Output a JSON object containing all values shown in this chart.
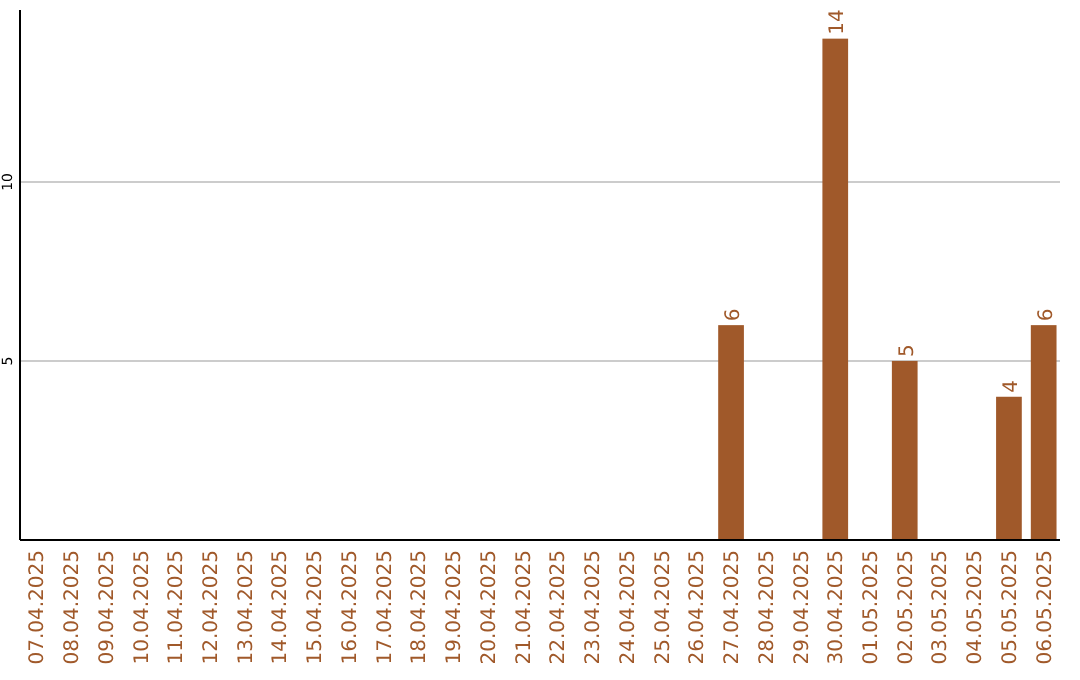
{
  "chart_data": {
    "type": "bar",
    "categories": [
      "07.04.2025",
      "08.04.2025",
      "09.04.2025",
      "10.04.2025",
      "11.04.2025",
      "12.04.2025",
      "13.04.2025",
      "14.04.2025",
      "15.04.2025",
      "16.04.2025",
      "17.04.2025",
      "18.04.2025",
      "19.04.2025",
      "20.04.2025",
      "21.04.2025",
      "22.04.2025",
      "23.04.2025",
      "24.04.2025",
      "25.04.2025",
      "26.04.2025",
      "27.04.2025",
      "28.04.2025",
      "29.04.2025",
      "30.04.2025",
      "01.05.2025",
      "02.05.2025",
      "03.05.2025",
      "04.05.2025",
      "05.05.2025",
      "06.05.2025"
    ],
    "values": [
      0,
      0,
      0,
      0,
      0,
      0,
      0,
      0,
      0,
      0,
      0,
      0,
      0,
      0,
      0,
      0,
      0,
      0,
      0,
      0,
      6,
      0,
      0,
      14,
      0,
      5,
      0,
      0,
      4,
      6
    ],
    "value_labels": [
      null,
      null,
      null,
      null,
      null,
      null,
      null,
      null,
      null,
      null,
      null,
      null,
      null,
      null,
      null,
      null,
      null,
      null,
      null,
      null,
      "6",
      null,
      null,
      "14",
      null,
      "5",
      null,
      null,
      "4",
      "6"
    ],
    "color": "#a0592a",
    "ylim": [
      0,
      14.8
    ],
    "yticks": [
      5,
      10
    ],
    "grid": "y"
  }
}
